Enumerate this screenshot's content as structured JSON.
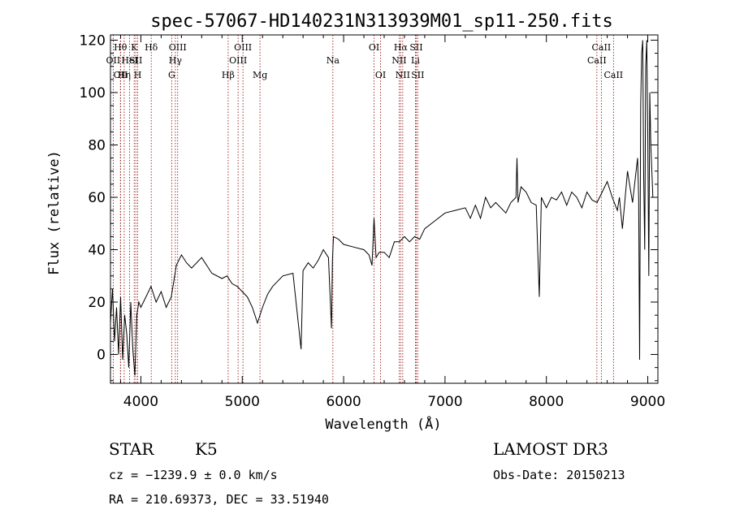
{
  "chart_data": {
    "type": "line",
    "title": "spec-57067-HD140231N313939M01_sp11-250.fits",
    "xlabel": "Wavelength (Å)",
    "ylabel": "Flux (relative)",
    "xlim": [
      3700,
      9100
    ],
    "ylim": [
      -11,
      122
    ],
    "x_ticks": [
      4000,
      5000,
      6000,
      7000,
      8000,
      9000
    ],
    "y_ticks": [
      0,
      20,
      40,
      60,
      80,
      100,
      120
    ],
    "series": [
      {
        "x": [
          3700,
          3720,
          3740,
          3760,
          3780,
          3800,
          3820,
          3840,
          3860,
          3880,
          3900,
          3920,
          3940,
          3960,
          3980,
          4000,
          4050,
          4100,
          4150,
          4200,
          4250,
          4300,
          4350,
          4400,
          4450,
          4500,
          4600,
          4700,
          4800,
          4850,
          4900,
          4950,
          5000,
          5050,
          5100,
          5150,
          5200,
          5250,
          5300,
          5400,
          5500,
          5580,
          5600,
          5650,
          5700,
          5750,
          5800,
          5850,
          5880,
          5890,
          5900,
          5950,
          6000,
          6100,
          6200,
          6250,
          6280,
          6300,
          6320,
          6350,
          6400,
          6450,
          6500,
          6550,
          6600,
          6650,
          6700,
          6750,
          6800,
          6900,
          7000,
          7100,
          7200,
          7250,
          7300,
          7350,
          7400,
          7450,
          7500,
          7600,
          7650,
          7700,
          7710,
          7720,
          7750,
          7800,
          7850,
          7900,
          7930,
          7950,
          8000,
          8050,
          8100,
          8150,
          8200,
          8250,
          8300,
          8350,
          8400,
          8450,
          8500,
          8550,
          8600,
          8650,
          8700,
          8720,
          8750,
          8800,
          8820,
          8850,
          8900,
          8910,
          8920,
          8930,
          8940,
          8950,
          8960,
          8970,
          8980,
          8990,
          9000,
          9010,
          9020,
          9030,
          9050
        ],
        "y": [
          12,
          25,
          5,
          18,
          0,
          22,
          -2,
          15,
          8,
          -5,
          20,
          2,
          -8,
          15,
          20,
          18,
          22,
          26,
          20,
          24,
          18,
          22,
          34,
          38,
          35,
          33,
          37,
          31,
          29,
          30,
          27,
          26,
          24,
          22,
          18,
          12,
          18,
          23,
          26,
          30,
          31,
          2,
          32,
          35,
          33,
          36,
          40,
          37,
          10,
          36,
          45,
          44,
          42,
          41,
          40,
          38,
          34,
          52,
          37,
          39,
          39,
          37,
          43,
          43,
          45,
          43,
          45,
          44,
          48,
          51,
          54,
          55,
          56,
          52,
          57,
          52,
          60,
          56,
          58,
          54,
          58,
          60,
          75,
          58,
          64,
          62,
          58,
          57,
          22,
          60,
          56,
          60,
          59,
          62,
          57,
          62,
          60,
          56,
          62,
          59,
          58,
          62,
          66,
          60,
          55,
          60,
          48,
          70,
          65,
          58,
          75,
          60,
          -2,
          95,
          115,
          120,
          68,
          40,
          110,
          120,
          85,
          30,
          100,
          80,
          60
        ]
      }
    ],
    "line_markers": [
      {
        "label": "OII",
        "wavelength": 3727,
        "row": 2
      },
      {
        "label": "Hθ",
        "wavelength": 3798,
        "row": 1
      },
      {
        "label": "OII",
        "wavelength": 3800,
        "row": 3
      },
      {
        "label": "Hη",
        "wavelength": 3835,
        "row": 3
      },
      {
        "label": "HeI",
        "wavelength": 3889,
        "row": 2
      },
      {
        "label": "K",
        "wavelength": 3934,
        "row": 1
      },
      {
        "label": "SII",
        "wavelength": 3950,
        "row": 2
      },
      {
        "label": "H",
        "wavelength": 3969,
        "row": 3
      },
      {
        "label": "Hδ",
        "wavelength": 4102,
        "row": 1
      },
      {
        "label": "G",
        "wavelength": 4304,
        "row": 3
      },
      {
        "label": "Hγ",
        "wavelength": 4340,
        "row": 2
      },
      {
        "label": "OIII",
        "wavelength": 4363,
        "row": 1
      },
      {
        "label": "Hβ",
        "wavelength": 4861,
        "row": 3
      },
      {
        "label": "OIII",
        "wavelength": 4959,
        "row": 2
      },
      {
        "label": "OIII",
        "wavelength": 5007,
        "row": 1
      },
      {
        "label": "Mg",
        "wavelength": 5175,
        "row": 3
      },
      {
        "label": "Na",
        "wavelength": 5894,
        "row": 2
      },
      {
        "label": "OI",
        "wavelength": 6300,
        "row": 1
      },
      {
        "label": "OI",
        "wavelength": 6364,
        "row": 3
      },
      {
        "label": "NII",
        "wavelength": 6548,
        "row": 2
      },
      {
        "label": "Hα",
        "wavelength": 6563,
        "row": 1
      },
      {
        "label": "NII",
        "wavelength": 6583,
        "row": 3
      },
      {
        "label": "SII",
        "wavelength": 6716,
        "row": 1
      },
      {
        "label": "Li",
        "wavelength": 6708,
        "row": 2
      },
      {
        "label": "SII",
        "wavelength": 6731,
        "row": 3
      },
      {
        "label": "CaII",
        "wavelength": 8498,
        "row": 2
      },
      {
        "label": "CaII",
        "wavelength": 8542,
        "row": 1
      },
      {
        "label": "CaII",
        "wavelength": 8662,
        "row": 3
      }
    ],
    "grid": false,
    "colors": {
      "spectrum": "#000000",
      "markers": "#8b0000",
      "axes": "#000000"
    }
  },
  "info": {
    "object_class": "STAR",
    "subclass": "K5",
    "survey": "LAMOST DR3",
    "cz": "cz = −1239.9 ± 0.0 km/s",
    "obs_date": "Obs-Date: 20150213",
    "coords": "RA = 210.69373, DEC =  33.51940"
  }
}
